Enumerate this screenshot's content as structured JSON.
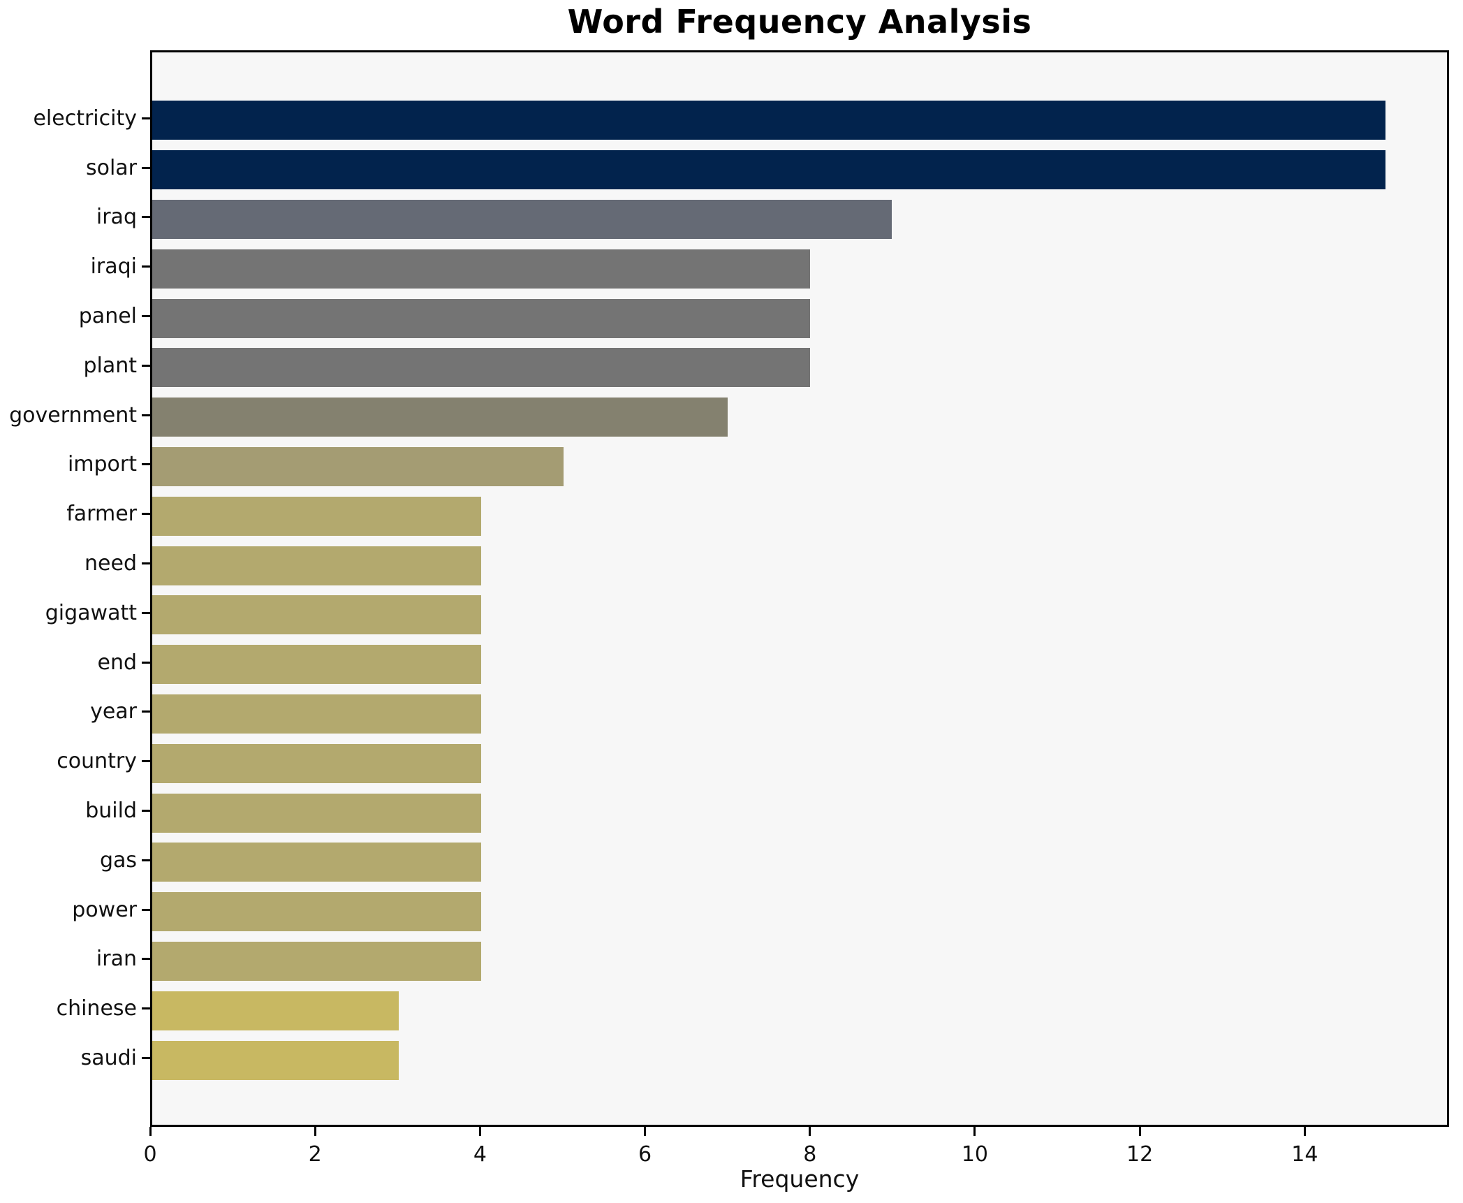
{
  "chart_data": {
    "type": "bar",
    "orientation": "horizontal",
    "title": "Word Frequency Analysis",
    "xlabel": "Frequency",
    "ylabel": "",
    "categories": [
      "electricity",
      "solar",
      "iraq",
      "iraqi",
      "panel",
      "plant",
      "government",
      "import",
      "farmer",
      "need",
      "gigawatt",
      "end",
      "year",
      "country",
      "build",
      "gas",
      "power",
      "iran",
      "chinese",
      "saudi"
    ],
    "values": [
      15,
      15,
      9,
      8,
      8,
      8,
      7,
      5,
      4,
      4,
      4,
      4,
      4,
      4,
      4,
      4,
      4,
      4,
      3,
      3
    ],
    "bar_colors": [
      "#02234d",
      "#02234d",
      "#656a75",
      "#747474",
      "#747474",
      "#747474",
      "#84816f",
      "#a49c73",
      "#b3a96e",
      "#b3a96e",
      "#b3a96e",
      "#b3a96e",
      "#b3a96e",
      "#b3a96e",
      "#b3a96e",
      "#b3a96e",
      "#b3a96e",
      "#b3a96e",
      "#c8b862",
      "#c8b862"
    ],
    "xlim": [
      0,
      15.75
    ],
    "xticks": [
      0,
      2,
      4,
      6,
      8,
      10,
      12,
      14
    ],
    "grid": false,
    "legend": false,
    "plot_background": "#f7f7f7",
    "figure_background": "#ffffff",
    "spine_color": "#000000",
    "text_color": "#111111"
  }
}
